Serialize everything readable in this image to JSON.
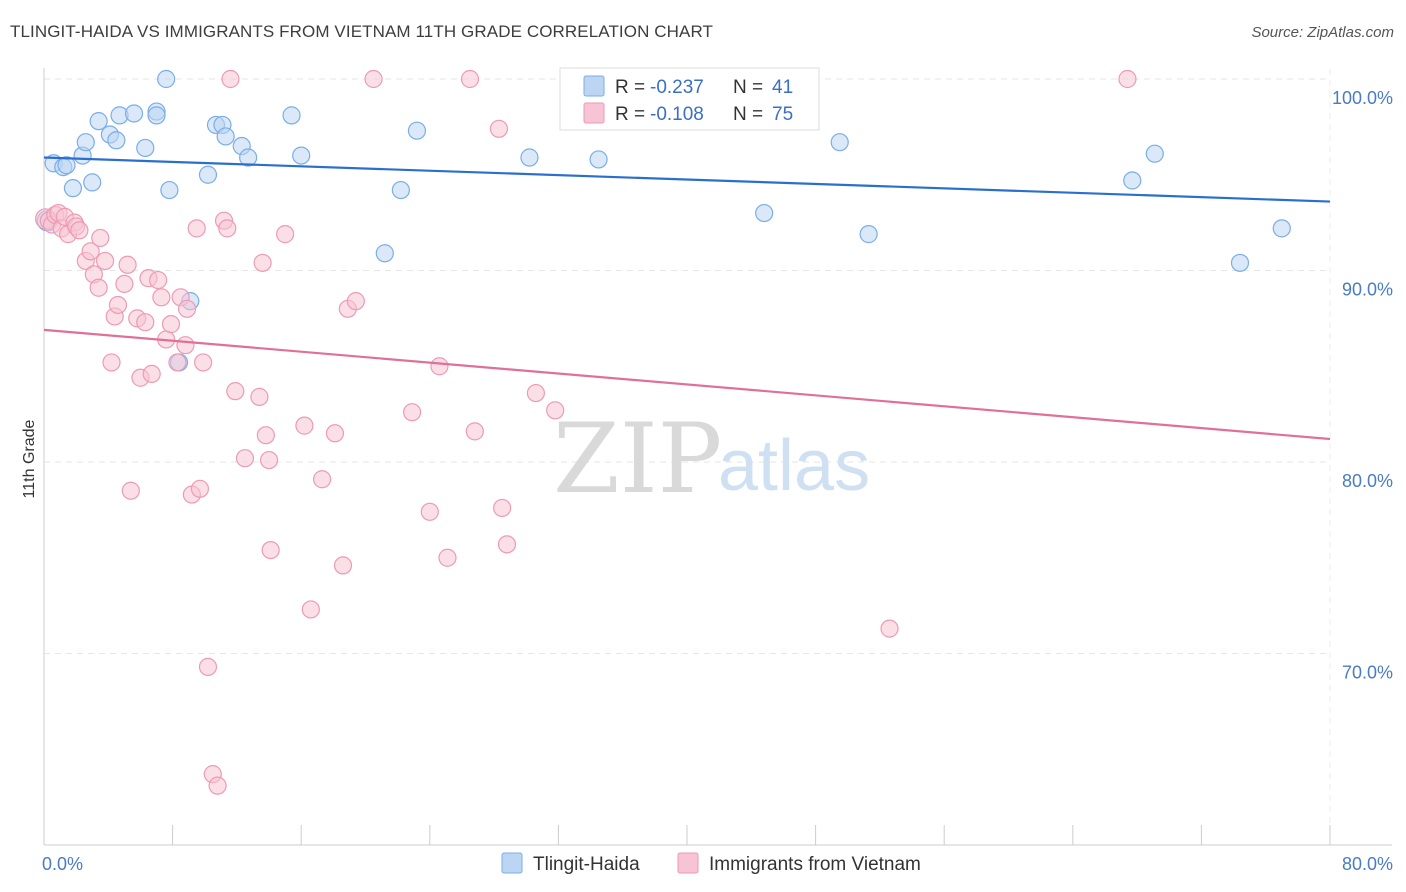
{
  "title": "TLINGIT-HAIDA VS IMMIGRANTS FROM VIETNAM 11TH GRADE CORRELATION CHART",
  "source": "Source: ZipAtlas.com",
  "watermark": {
    "zip": "ZIP",
    "atlas": "atlas"
  },
  "chart_data": {
    "type": "scatter",
    "ylabel": "11th Grade",
    "xlim": [
      0,
      80
    ],
    "ylim": [
      60,
      100
    ],
    "x_ticks": [
      0,
      80
    ],
    "x_tick_labels": [
      "0.0%",
      "80.0%"
    ],
    "y_ticks": [
      100,
      90,
      80,
      70
    ],
    "y_tick_labels": [
      "100.0%",
      "90.0%",
      "80.0%",
      "70.0%"
    ],
    "grid": true,
    "legend_position": "top-center",
    "legend": [
      {
        "r_label": "R =",
        "r_value": "-0.237",
        "n_label": "N =",
        "n_value": "41"
      },
      {
        "r_label": "R =",
        "r_value": "-0.108",
        "n_label": "N =",
        "n_value": "75"
      }
    ],
    "series": [
      {
        "name": "Tlingit-Haida",
        "color": "#7aaee8",
        "fill": "#bcd5f3",
        "line_color": "#2b6fce",
        "trend": {
          "x0": 0,
          "y0": 95.9,
          "x1": 80,
          "y1": 93.6
        },
        "points": [
          [
            0.2,
            92.6
          ],
          [
            0.6,
            95.6
          ],
          [
            1.2,
            95.4
          ],
          [
            1.4,
            95.5
          ],
          [
            1.8,
            94.3
          ],
          [
            2.4,
            96.0
          ],
          [
            2.6,
            96.7
          ],
          [
            3.0,
            94.6
          ],
          [
            3.4,
            97.8
          ],
          [
            4.1,
            97.1
          ],
          [
            4.5,
            96.8
          ],
          [
            4.7,
            98.1
          ],
          [
            5.6,
            98.2
          ],
          [
            6.3,
            96.4
          ],
          [
            7.0,
            98.3
          ],
          [
            7.0,
            98.1
          ],
          [
            7.6,
            100.0
          ],
          [
            7.8,
            94.2
          ],
          [
            8.4,
            85.2
          ],
          [
            9.1,
            88.4
          ],
          [
            10.2,
            95.0
          ],
          [
            10.7,
            97.6
          ],
          [
            11.1,
            97.6
          ],
          [
            11.3,
            97.0
          ],
          [
            12.3,
            96.5
          ],
          [
            12.7,
            95.9
          ],
          [
            15.4,
            98.1
          ],
          [
            16.0,
            96.0
          ],
          [
            21.2,
            90.9
          ],
          [
            22.2,
            94.2
          ],
          [
            23.2,
            97.3
          ],
          [
            30.2,
            95.9
          ],
          [
            34.5,
            95.8
          ],
          [
            36.2,
            100.0
          ],
          [
            44.8,
            93.0
          ],
          [
            49.5,
            96.7
          ],
          [
            51.3,
            91.9
          ],
          [
            67.7,
            94.7
          ],
          [
            69.1,
            96.1
          ],
          [
            74.4,
            90.4
          ],
          [
            77.0,
            92.2
          ]
        ]
      },
      {
        "name": "Immigrants from Vietnam",
        "color": "#ee9ab5",
        "fill": "#f6c4d4",
        "line_color": "#e07098",
        "trend": {
          "x0": 0,
          "y0": 86.9,
          "x1": 80,
          "y1": 81.2
        },
        "points": [
          [
            0.1,
            92.7
          ],
          [
            0.3,
            92.6
          ],
          [
            0.5,
            92.4
          ],
          [
            0.7,
            92.9
          ],
          [
            0.9,
            93.0
          ],
          [
            1.1,
            92.2
          ],
          [
            1.3,
            92.8
          ],
          [
            1.5,
            91.9
          ],
          [
            1.9,
            92.5
          ],
          [
            2.0,
            92.3
          ],
          [
            2.2,
            92.1
          ],
          [
            2.6,
            90.5
          ],
          [
            2.9,
            91.0
          ],
          [
            3.1,
            89.8
          ],
          [
            3.4,
            89.1
          ],
          [
            3.5,
            91.7
          ],
          [
            3.8,
            90.5
          ],
          [
            4.2,
            85.2
          ],
          [
            4.4,
            87.6
          ],
          [
            4.6,
            88.2
          ],
          [
            5.0,
            89.3
          ],
          [
            5.2,
            90.3
          ],
          [
            5.4,
            78.5
          ],
          [
            5.8,
            87.5
          ],
          [
            6.0,
            84.4
          ],
          [
            6.3,
            87.3
          ],
          [
            6.5,
            89.6
          ],
          [
            6.7,
            84.6
          ],
          [
            7.1,
            89.5
          ],
          [
            7.3,
            88.6
          ],
          [
            7.6,
            86.4
          ],
          [
            7.9,
            87.2
          ],
          [
            8.3,
            85.2
          ],
          [
            8.5,
            88.6
          ],
          [
            8.8,
            86.1
          ],
          [
            8.9,
            88.0
          ],
          [
            9.2,
            78.3
          ],
          [
            9.5,
            92.2
          ],
          [
            9.7,
            78.6
          ],
          [
            9.9,
            85.2
          ],
          [
            10.2,
            69.3
          ],
          [
            10.5,
            63.7
          ],
          [
            10.8,
            63.1
          ],
          [
            11.2,
            92.6
          ],
          [
            11.4,
            92.2
          ],
          [
            11.6,
            100.0
          ],
          [
            11.9,
            83.7
          ],
          [
            12.5,
            80.2
          ],
          [
            13.4,
            83.4
          ],
          [
            13.6,
            90.4
          ],
          [
            13.8,
            81.4
          ],
          [
            14.0,
            80.1
          ],
          [
            14.1,
            75.4
          ],
          [
            15.0,
            91.9
          ],
          [
            16.2,
            81.9
          ],
          [
            16.6,
            72.3
          ],
          [
            17.3,
            79.1
          ],
          [
            18.1,
            81.5
          ],
          [
            18.6,
            74.6
          ],
          [
            18.9,
            88.0
          ],
          [
            19.4,
            88.4
          ],
          [
            20.5,
            100.0
          ],
          [
            22.9,
            82.6
          ],
          [
            24.0,
            77.4
          ],
          [
            24.6,
            85.0
          ],
          [
            25.1,
            75.0
          ],
          [
            26.5,
            100.0
          ],
          [
            26.8,
            81.6
          ],
          [
            28.3,
            97.4
          ],
          [
            28.5,
            77.6
          ],
          [
            28.8,
            75.7
          ],
          [
            30.6,
            83.6
          ],
          [
            31.8,
            82.7
          ],
          [
            52.6,
            71.3
          ],
          [
            67.4,
            100.0
          ]
        ]
      }
    ]
  }
}
